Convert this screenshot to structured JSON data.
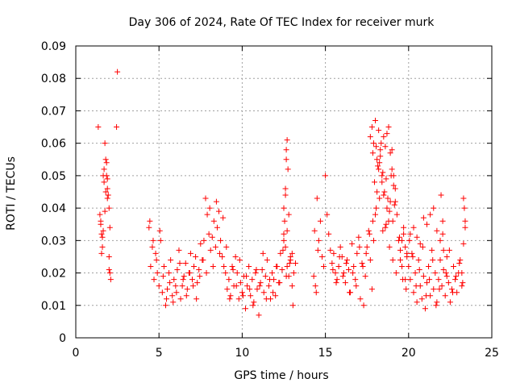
{
  "chart_data": {
    "type": "scatter",
    "title": "Day 306 of 2024, Rate Of TEC Index for receiver murk",
    "xlabel": "GPS time / hours",
    "ylabel": "ROTI / TECUs",
    "xlim": [
      0,
      25
    ],
    "ylim": [
      0,
      0.09
    ],
    "x_ticks": [
      0,
      5,
      10,
      15,
      20,
      25
    ],
    "x_tick_labels": [
      "0",
      "5",
      "10",
      "15",
      "20",
      "25"
    ],
    "y_ticks": [
      0,
      0.01,
      0.02,
      0.03,
      0.04,
      0.05,
      0.06,
      0.07,
      0.08,
      0.09
    ],
    "y_tick_labels": [
      "0",
      "0.01",
      "0.02",
      "0.03",
      "0.04",
      "0.05",
      "0.06",
      "0.07",
      "0.08",
      "0.09"
    ],
    "grid": true,
    "marker": "+",
    "color": "#ff0000",
    "x": [
      1.35,
      1.45,
      1.5,
      1.55,
      1.6,
      1.65,
      1.7,
      1.75,
      1.8,
      1.85,
      1.9,
      1.95,
      2.0,
      2.05,
      2.5,
      2.45,
      1.55,
      1.8,
      1.9,
      2.0,
      1.6,
      1.7,
      1.5,
      1.85,
      2.1,
      2.0,
      1.65,
      1.9,
      2.05,
      1.75,
      4.4,
      4.5,
      4.6,
      4.7,
      4.8,
      4.9,
      5.0,
      5.1,
      5.2,
      5.3,
      5.4,
      5.5,
      5.6,
      5.7,
      5.8,
      5.9,
      6.0,
      6.1,
      6.2,
      6.3,
      6.4,
      6.5,
      6.6,
      6.7,
      6.8,
      6.9,
      7.0,
      7.1,
      7.2,
      7.3,
      7.4,
      7.5,
      7.6,
      7.7,
      7.8,
      7.9,
      8.0,
      8.1,
      8.2,
      8.3,
      8.4,
      8.5,
      8.6,
      8.7,
      8.8,
      8.9,
      4.45,
      4.65,
      4.85,
      5.05,
      5.25,
      5.45,
      5.65,
      5.85,
      6.05,
      6.25,
      6.45,
      6.65,
      6.85,
      7.05,
      7.25,
      7.45,
      7.65,
      7.85,
      8.05,
      8.25,
      8.45,
      8.65,
      8.85,
      9.0,
      9.1,
      9.2,
      9.3,
      9.4,
      9.5,
      9.6,
      9.7,
      9.8,
      9.9,
      10.0,
      10.1,
      10.2,
      10.3,
      10.4,
      10.5,
      10.6,
      10.7,
      10.8,
      10.9,
      11.0,
      11.1,
      11.2,
      11.3,
      11.4,
      11.5,
      11.6,
      11.7,
      11.8,
      11.9,
      12.0,
      12.1,
      12.2,
      12.3,
      12.4,
      12.5,
      12.6,
      12.7,
      12.8,
      12.9,
      13.0,
      13.1,
      13.2,
      9.05,
      9.25,
      9.45,
      9.65,
      9.85,
      10.05,
      10.25,
      10.45,
      10.65,
      10.85,
      11.05,
      11.25,
      11.45,
      11.65,
      11.85,
      12.05,
      12.25,
      12.45,
      12.65,
      12.85,
      13.05,
      12.5,
      12.6,
      12.65,
      12.7,
      12.55,
      12.75,
      12.6,
      12.7,
      12.5,
      12.8,
      12.9,
      13.0,
      12.65,
      14.3,
      14.4,
      14.5,
      14.6,
      14.7,
      14.9,
      15.0,
      15.1,
      14.45,
      14.55,
      14.35,
      14.8,
      15.2,
      15.3,
      15.4,
      15.5,
      15.6,
      15.7,
      15.8,
      15.9,
      16.0,
      16.1,
      16.2,
      16.3,
      16.4,
      16.5,
      16.6,
      16.7,
      16.8,
      16.9,
      17.0,
      17.1,
      17.2,
      17.3,
      17.4,
      17.5,
      17.6,
      17.7,
      17.8,
      17.9,
      18.0,
      18.1,
      18.2,
      18.3,
      18.4,
      18.5,
      18.6,
      18.7,
      18.8,
      18.9,
      19.0,
      19.1,
      19.2,
      19.3,
      19.4,
      19.5,
      19.6,
      19.7,
      19.8,
      19.9,
      15.45,
      15.65,
      15.85,
      16.05,
      16.25,
      16.45,
      16.65,
      16.85,
      17.05,
      17.25,
      17.45,
      17.65,
      17.85,
      18.05,
      18.25,
      18.45,
      18.65,
      18.85,
      19.05,
      19.25,
      19.45,
      19.65,
      19.85,
      17.7,
      17.8,
      17.9,
      18.0,
      18.1,
      18.2,
      18.3,
      18.4,
      18.5,
      18.6,
      18.7,
      18.8,
      18.9,
      19.0,
      19.1,
      19.2,
      17.95,
      18.15,
      18.35,
      18.55,
      18.75,
      18.95,
      19.15,
      17.85,
      18.05,
      18.25,
      18.45,
      18.65,
      18.85,
      19.05,
      20.0,
      20.1,
      20.2,
      20.3,
      20.4,
      20.5,
      20.6,
      20.7,
      20.8,
      20.9,
      21.0,
      21.1,
      21.2,
      21.3,
      21.4,
      21.5,
      21.6,
      21.7,
      21.8,
      21.9,
      22.0,
      22.1,
      22.2,
      22.3,
      22.4,
      22.5,
      22.6,
      22.7,
      22.8,
      22.9,
      23.0,
      23.1,
      23.2,
      23.3,
      23.4,
      20.05,
      20.25,
      20.45,
      20.65,
      20.85,
      21.05,
      21.25,
      21.45,
      21.65,
      21.85,
      22.05,
      22.25,
      22.45,
      22.65,
      22.85,
      23.05,
      23.25,
      19.5,
      19.6,
      19.7,
      19.8,
      19.9,
      20.1,
      20.3,
      20.5,
      20.7,
      20.9,
      21.1,
      21.3,
      21.5,
      21.7,
      21.9,
      22.1,
      22.3,
      23.3,
      23.35,
      23.4,
      23.2,
      21.95,
      22.05
    ],
    "y": [
      0.065,
      0.038,
      0.035,
      0.032,
      0.028,
      0.05,
      0.052,
      0.06,
      0.055,
      0.054,
      0.046,
      0.044,
      0.04,
      0.034,
      0.082,
      0.065,
      0.026,
      0.045,
      0.043,
      0.021,
      0.031,
      0.048,
      0.036,
      0.05,
      0.018,
      0.025,
      0.033,
      0.049,
      0.02,
      0.039,
      0.034,
      0.022,
      0.028,
      0.018,
      0.026,
      0.02,
      0.016,
      0.03,
      0.014,
      0.022,
      0.01,
      0.015,
      0.02,
      0.024,
      0.013,
      0.018,
      0.016,
      0.021,
      0.027,
      0.012,
      0.016,
      0.019,
      0.023,
      0.015,
      0.02,
      0.026,
      0.018,
      0.022,
      0.025,
      0.017,
      0.021,
      0.029,
      0.024,
      0.03,
      0.043,
      0.038,
      0.032,
      0.027,
      0.031,
      0.036,
      0.028,
      0.034,
      0.039,
      0.03,
      0.025,
      0.022,
      0.036,
      0.03,
      0.024,
      0.033,
      0.019,
      0.012,
      0.017,
      0.011,
      0.014,
      0.023,
      0.018,
      0.013,
      0.02,
      0.016,
      0.012,
      0.019,
      0.024,
      0.02,
      0.04,
      0.022,
      0.042,
      0.026,
      0.037,
      0.02,
      0.015,
      0.018,
      0.013,
      0.022,
      0.016,
      0.025,
      0.02,
      0.012,
      0.017,
      0.014,
      0.019,
      0.009,
      0.016,
      0.022,
      0.013,
      0.018,
      0.011,
      0.02,
      0.015,
      0.007,
      0.017,
      0.021,
      0.014,
      0.019,
      0.024,
      0.016,
      0.012,
      0.02,
      0.018,
      0.013,
      0.022,
      0.017,
      0.026,
      0.021,
      0.032,
      0.028,
      0.022,
      0.019,
      0.025,
      0.016,
      0.02,
      0.023,
      0.028,
      0.012,
      0.021,
      0.016,
      0.024,
      0.013,
      0.019,
      0.015,
      0.01,
      0.021,
      0.016,
      0.026,
      0.012,
      0.018,
      0.014,
      0.022,
      0.017,
      0.027,
      0.019,
      0.023,
      0.01,
      0.04,
      0.044,
      0.058,
      0.061,
      0.036,
      0.052,
      0.046,
      0.033,
      0.03,
      0.038,
      0.024,
      0.026,
      0.055,
      0.019,
      0.016,
      0.043,
      0.03,
      0.036,
      0.022,
      0.05,
      0.038,
      0.014,
      0.027,
      0.033,
      0.025,
      0.032,
      0.027,
      0.023,
      0.026,
      0.02,
      0.018,
      0.022,
      0.028,
      0.025,
      0.02,
      0.017,
      0.024,
      0.021,
      0.014,
      0.029,
      0.022,
      0.018,
      0.026,
      0.031,
      0.012,
      0.023,
      0.01,
      0.019,
      0.028,
      0.033,
      0.024,
      0.015,
      0.03,
      0.038,
      0.045,
      0.052,
      0.056,
      0.048,
      0.044,
      0.034,
      0.04,
      0.036,
      0.042,
      0.058,
      0.05,
      0.046,
      0.038,
      0.03,
      0.027,
      0.022,
      0.032,
      0.018,
      0.025,
      0.021,
      0.017,
      0.025,
      0.019,
      0.023,
      0.014,
      0.02,
      0.016,
      0.028,
      0.022,
      0.026,
      0.032,
      0.036,
      0.04,
      0.043,
      0.033,
      0.035,
      0.028,
      0.024,
      0.02,
      0.031,
      0.018,
      0.015,
      0.062,
      0.065,
      0.06,
      0.067,
      0.055,
      0.064,
      0.058,
      0.05,
      0.062,
      0.059,
      0.063,
      0.065,
      0.057,
      0.052,
      0.047,
      0.042,
      0.048,
      0.053,
      0.06,
      0.045,
      0.043,
      0.05,
      0.041,
      0.057,
      0.059,
      0.054,
      0.051,
      0.049,
      0.039,
      0.036,
      0.022,
      0.018,
      0.026,
      0.014,
      0.02,
      0.011,
      0.024,
      0.016,
      0.012,
      0.019,
      0.009,
      0.017,
      0.022,
      0.013,
      0.027,
      0.015,
      0.02,
      0.011,
      0.018,
      0.024,
      0.016,
      0.021,
      0.013,
      0.019,
      0.017,
      0.011,
      0.015,
      0.022,
      0.018,
      0.014,
      0.02,
      0.024,
      0.016,
      0.029,
      0.036,
      0.03,
      0.025,
      0.016,
      0.021,
      0.028,
      0.013,
      0.018,
      0.024,
      0.01,
      0.015,
      0.032,
      0.02,
      0.027,
      0.014,
      0.019,
      0.023,
      0.017,
      0.024,
      0.03,
      0.034,
      0.028,
      0.026,
      0.032,
      0.034,
      0.031,
      0.029,
      0.037,
      0.035,
      0.038,
      0.04,
      0.033,
      0.03,
      0.027,
      0.025,
      0.043,
      0.04,
      0.034,
      0.02,
      0.044,
      0.036
    ]
  }
}
